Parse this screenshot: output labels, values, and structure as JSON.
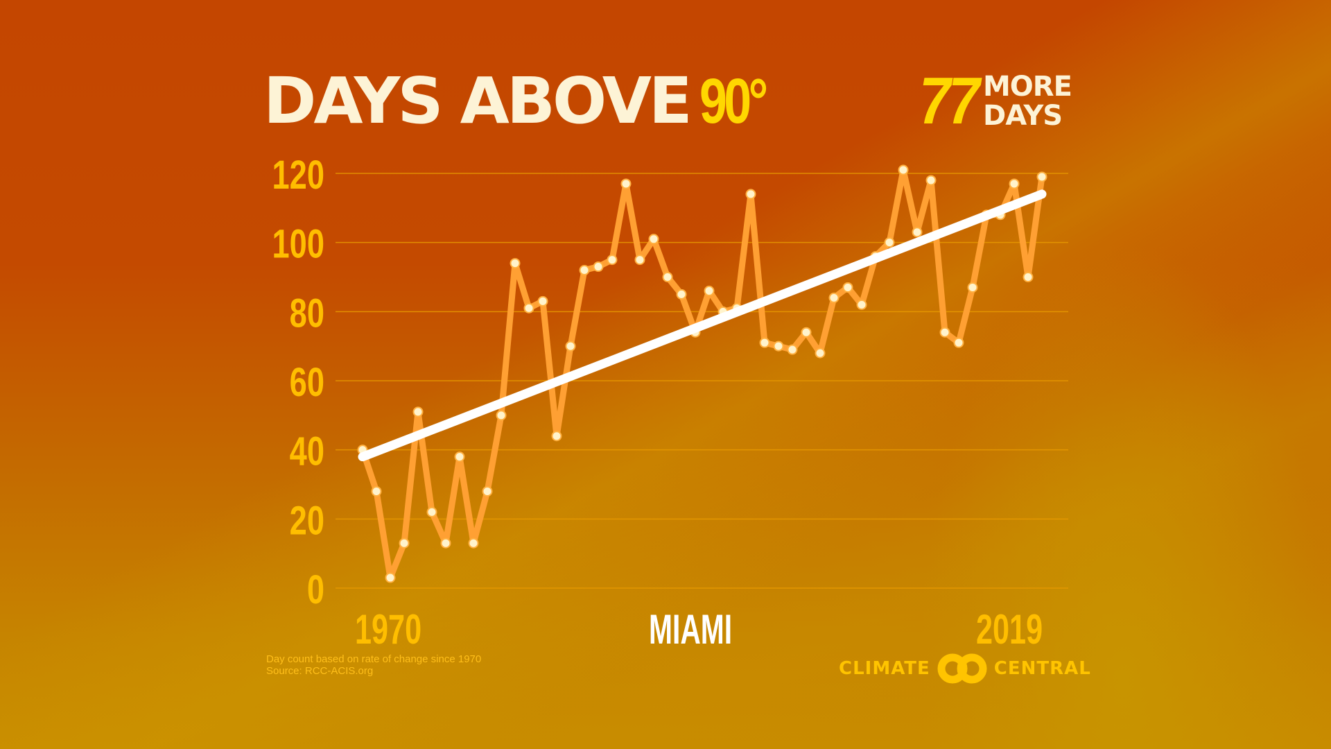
{
  "title": {
    "main": "DAYS ABOVE",
    "threshold": "90°"
  },
  "badge": {
    "number": "77",
    "line1": "MORE",
    "line2": "DAYS"
  },
  "axis": {
    "x_start": "1970",
    "x_end": "2019",
    "city": "MIAMI"
  },
  "footnote": {
    "line1": "Day count based on rate of change since 1970",
    "line2": "Source: RCC-ACIS.org"
  },
  "logo": {
    "left": "CLIMATE",
    "right": "CENTRAL"
  },
  "colors": {
    "title": "#fdf3d6",
    "highlight": "#ffd700",
    "tick": "#ffbe00",
    "line": "#ffa033",
    "point": "#fff3cc",
    "grid": "#e89a00",
    "trend": "#ffffff"
  },
  "chart_data": {
    "type": "line",
    "title": "DAYS ABOVE 90°",
    "subtitle": "77 MORE DAYS",
    "xlabel": "MIAMI",
    "ylabel": "",
    "ylim": [
      0,
      120
    ],
    "yticks": [
      0,
      20,
      40,
      60,
      80,
      100,
      120
    ],
    "xtick_labels": [
      "1970",
      "2019"
    ],
    "grid": true,
    "legend": "none",
    "x": [
      1970,
      1971,
      1972,
      1973,
      1974,
      1975,
      1976,
      1977,
      1978,
      1979,
      1980,
      1981,
      1982,
      1983,
      1984,
      1985,
      1986,
      1987,
      1988,
      1989,
      1990,
      1991,
      1992,
      1993,
      1994,
      1995,
      1996,
      1997,
      1998,
      1999,
      2000,
      2001,
      2002,
      2003,
      2004,
      2005,
      2006,
      2007,
      2008,
      2009,
      2010,
      2011,
      2012,
      2013,
      2014,
      2015,
      2016,
      2017,
      2018,
      2019
    ],
    "series": [
      {
        "name": "Days above 90°F",
        "values": [
          40,
          28,
          3,
          13,
          51,
          22,
          13,
          38,
          13,
          28,
          50,
          94,
          81,
          83,
          44,
          70,
          92,
          93,
          95,
          117,
          95,
          101,
          90,
          85,
          74,
          86,
          80,
          81,
          114,
          71,
          70,
          69,
          74,
          68,
          84,
          87,
          82,
          96,
          100,
          121,
          103,
          118,
          74,
          71,
          87,
          108,
          108,
          117,
          90,
          119
        ]
      },
      {
        "name": "Trend",
        "type": "linear",
        "start": {
          "x": 1970,
          "y": 38
        },
        "end": {
          "x": 2019,
          "y": 114
        }
      }
    ],
    "annotations": [
      "Day count based on rate of change since 1970",
      "Source: RCC-ACIS.org"
    ]
  }
}
